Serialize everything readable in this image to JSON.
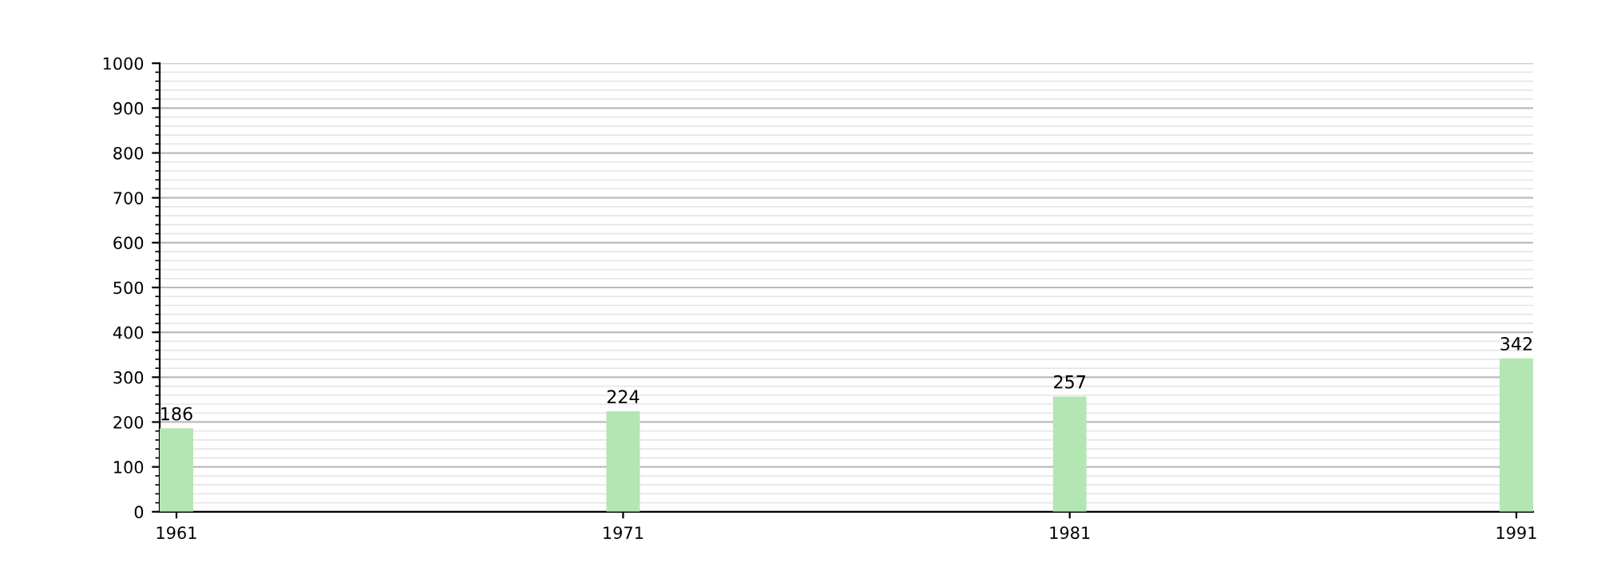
{
  "chart_data": {
    "type": "bar",
    "categories": [
      "1961",
      "1971",
      "1981",
      "1991"
    ],
    "values": [
      186,
      224,
      257,
      342
    ],
    "color": "#b3e6b3",
    "ylim": [
      0,
      1000
    ],
    "yticks": [
      0,
      100,
      200,
      300,
      400,
      500,
      600,
      700,
      800,
      900,
      1000
    ],
    "grid": "y",
    "data_labels": true
  }
}
